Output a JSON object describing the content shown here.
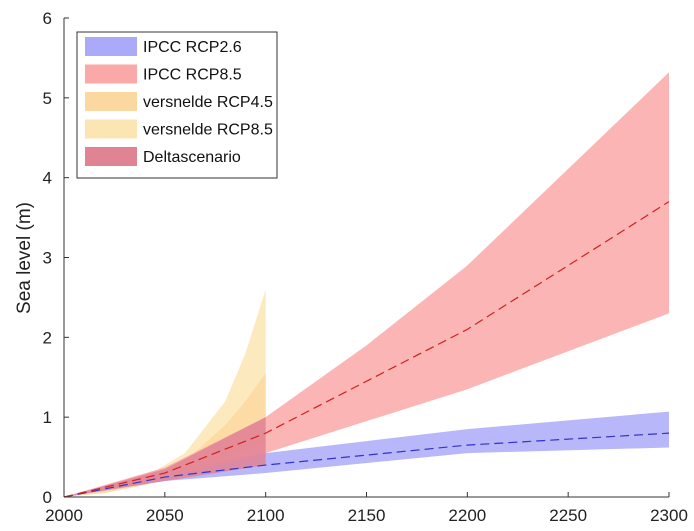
{
  "chart_data": {
    "type": "area",
    "title": "",
    "xlabel": "",
    "ylabel": "Sea level (m)",
    "xlim": [
      2000,
      2300
    ],
    "ylim": [
      0,
      6
    ],
    "xticks": [
      2000,
      2050,
      2100,
      2150,
      2200,
      2250,
      2300
    ],
    "yticks": [
      0,
      1,
      2,
      3,
      4,
      5,
      6
    ],
    "grid": false,
    "legend_position": "top-left",
    "series": [
      {
        "name": "versnelde RCP8.5",
        "color": "#fbe5b3",
        "x": [
          2000,
          2020,
          2040,
          2060,
          2080,
          2090,
          2100
        ],
        "lower": [
          0,
          0.05,
          0.15,
          0.3,
          0.5,
          0.6,
          0.7
        ],
        "upper": [
          0,
          0.1,
          0.25,
          0.55,
          1.2,
          1.8,
          2.6
        ]
      },
      {
        "name": "versnelde RCP4.5",
        "color": "#fbd8a0",
        "x": [
          2000,
          2020,
          2040,
          2060,
          2080,
          2090,
          2100
        ],
        "lower": [
          0,
          0.05,
          0.15,
          0.3,
          0.5,
          0.6,
          0.7
        ],
        "upper": [
          0,
          0.08,
          0.2,
          0.45,
          0.9,
          1.2,
          1.55
        ]
      },
      {
        "name": "IPCC RCP2.6",
        "color": "#aaaaf8",
        "line_color": "#3333cc",
        "x": [
          2000,
          2050,
          2100,
          2200,
          2300
        ],
        "lower": [
          0,
          0.2,
          0.3,
          0.55,
          0.62
        ],
        "upper": [
          0,
          0.33,
          0.55,
          0.85,
          1.07
        ],
        "median": [
          0,
          0.25,
          0.4,
          0.65,
          0.8
        ]
      },
      {
        "name": "IPCC RCP8.5",
        "color": "#fba8a8",
        "line_color": "#d02020",
        "x": [
          2000,
          2050,
          2100,
          2150,
          2200,
          2300
        ],
        "lower": [
          0,
          0.23,
          0.55,
          0.95,
          1.35,
          2.3
        ],
        "upper": [
          0,
          0.37,
          1.0,
          1.9,
          2.9,
          5.32
        ],
        "median": [
          0,
          0.3,
          0.8,
          1.45,
          2.1,
          3.7
        ]
      },
      {
        "name": "Deltascenario",
        "color": "#e08494",
        "x": [
          2000,
          2050,
          2100
        ],
        "lower": [
          0,
          0.2,
          0.4
        ],
        "upper": [
          0,
          0.35,
          1.0
        ]
      }
    ]
  }
}
